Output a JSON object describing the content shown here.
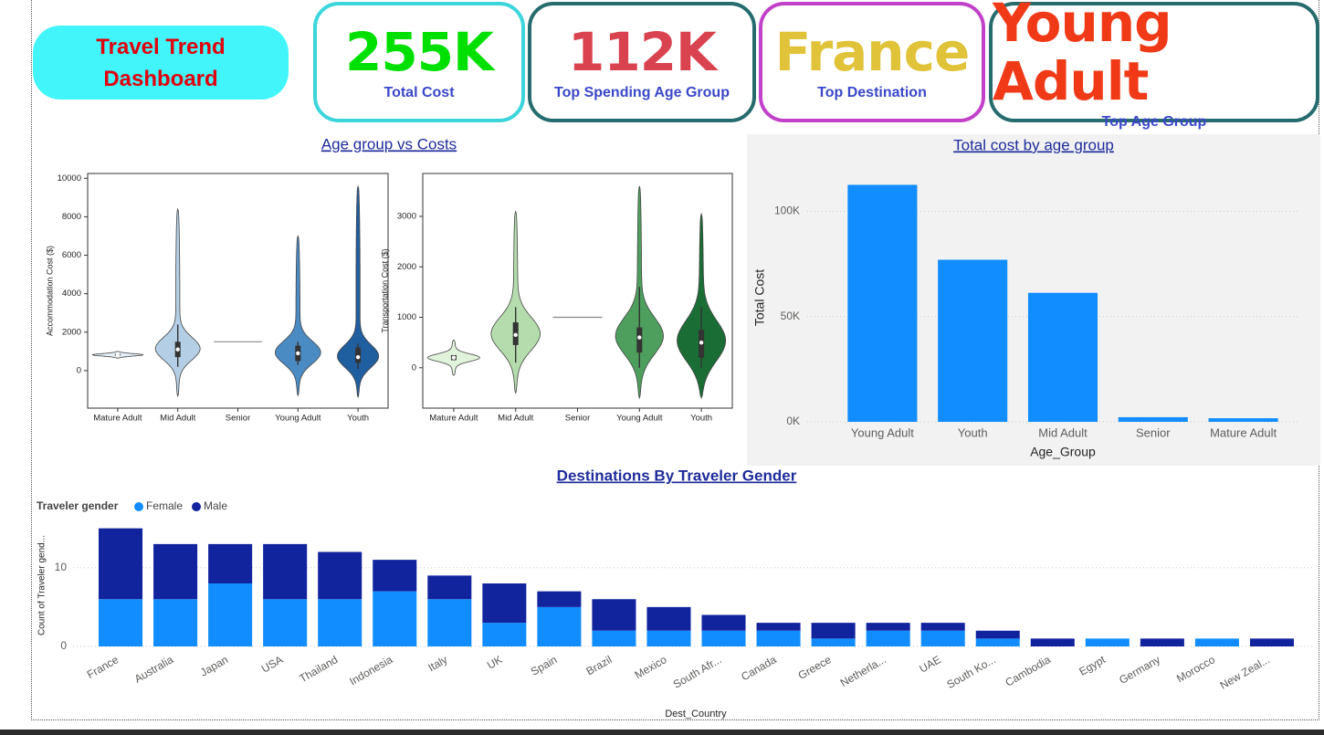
{
  "header": {
    "title": "Travel Trend Dashboard"
  },
  "kpis": [
    {
      "value": "255K",
      "label": "Total Cost"
    },
    {
      "value": "112K",
      "label": "Top Spending Age Group"
    },
    {
      "value": "France",
      "label": "Top Destination"
    },
    {
      "value": "Young Adult",
      "label": "Top Age Group"
    }
  ],
  "section_title": "Age group vs Costs",
  "chart_data": [
    {
      "type": "violin",
      "y_label": "Accommodation Cost ($)",
      "categories": [
        "Mature Adult",
        "Mid Adult",
        "Senior",
        "Young Adult",
        "Youth"
      ],
      "colors": [
        "#e6f0f9",
        "#b4cfe5",
        "#9ec2e0",
        "#4a8bc4",
        "#1f5e9f"
      ],
      "stats": {
        "min": [
          650,
          -1330,
          1500,
          -1300,
          -1400
        ],
        "whisker_low": [
          780,
          200,
          1500,
          300,
          100
        ],
        "q1": [
          780,
          700,
          1500,
          500,
          400
        ],
        "median": [
          820,
          1100,
          1500,
          900,
          700
        ],
        "q3": [
          870,
          1500,
          1500,
          1300,
          1200
        ],
        "whisker_high": [
          870,
          2400,
          1500,
          1500,
          1400
        ],
        "max": [
          1000,
          8400,
          1500,
          7000,
          9600
        ]
      },
      "ylim": [
        -1950,
        10250
      ],
      "yticks": [
        0,
        2000,
        4000,
        6000,
        8000,
        10000
      ]
    },
    {
      "type": "violin",
      "y_label": "Transportation Cost ($)",
      "categories": [
        "Mature Adult",
        "Mid Adult",
        "Senior",
        "Young Adult",
        "Youth"
      ],
      "colors": [
        "#e1f3db",
        "#b4dcac",
        "#8fca8a",
        "#4e9e5d",
        "#1a6d34"
      ],
      "stats": {
        "min": [
          -150,
          -500,
          1000,
          -600,
          -600
        ],
        "whisker_low": [
          150,
          100,
          1000,
          0,
          0
        ],
        "q1": [
          150,
          450,
          1000,
          300,
          200
        ],
        "median": [
          200,
          650,
          1000,
          600,
          500
        ],
        "q3": [
          250,
          900,
          1000,
          800,
          750
        ],
        "whisker_high": [
          250,
          1200,
          1000,
          1600,
          1200
        ],
        "max": [
          550,
          3100,
          1000,
          3600,
          3050
        ]
      },
      "ylim": [
        -800,
        3850
      ],
      "yticks": [
        0,
        1000,
        2000,
        3000
      ]
    },
    {
      "type": "bar",
      "title": "Total cost by age group",
      "x_label": "Age_Group",
      "y_label": "Total Cost",
      "categories": [
        "Young Adult",
        "Youth",
        "Mid Adult",
        "Senior",
        "Mature Adult"
      ],
      "values": [
        112600,
        77000,
        61300,
        2200,
        1700
      ],
      "color": "#118dff",
      "ylim": [
        0,
        118000
      ],
      "yticks": [
        {
          "value": 0,
          "label": "0K"
        },
        {
          "value": 50000,
          "label": "50K"
        },
        {
          "value": 100000,
          "label": "100K"
        }
      ],
      "grid": true
    },
    {
      "type": "stacked_bar",
      "title": "Destinations By Traveler Gender",
      "x_label": "Dest_Country",
      "y_label": "Count of Traveler gend...",
      "legend_title": "Traveler gender",
      "categories": [
        "France",
        "Australia",
        "Japan",
        "USA",
        "Thailand",
        "Indonesia",
        "Italy",
        "UK",
        "Spain",
        "Brazil",
        "Mexico",
        "South Afr...",
        "Canada",
        "Greece",
        "Netherla...",
        "UAE",
        "South Ko...",
        "Cambodia",
        "Egypt",
        "Germany",
        "Morocco",
        "New Zeal..."
      ],
      "series": [
        {
          "name": "Female",
          "color": "#118dff",
          "values": [
            6,
            6,
            8,
            6,
            6,
            7,
            6,
            3,
            5,
            2,
            2,
            2,
            2,
            1,
            2,
            2,
            1,
            0,
            1,
            0,
            1,
            0
          ]
        },
        {
          "name": "Male",
          "color": "#12239e",
          "values": [
            9,
            7,
            5,
            7,
            6,
            4,
            3,
            5,
            2,
            4,
            3,
            2,
            1,
            2,
            1,
            1,
            1,
            1,
            0,
            1,
            0,
            1
          ]
        }
      ],
      "ylim": [
        0,
        16
      ],
      "yticks": [
        0,
        10
      ],
      "grid": true
    }
  ]
}
